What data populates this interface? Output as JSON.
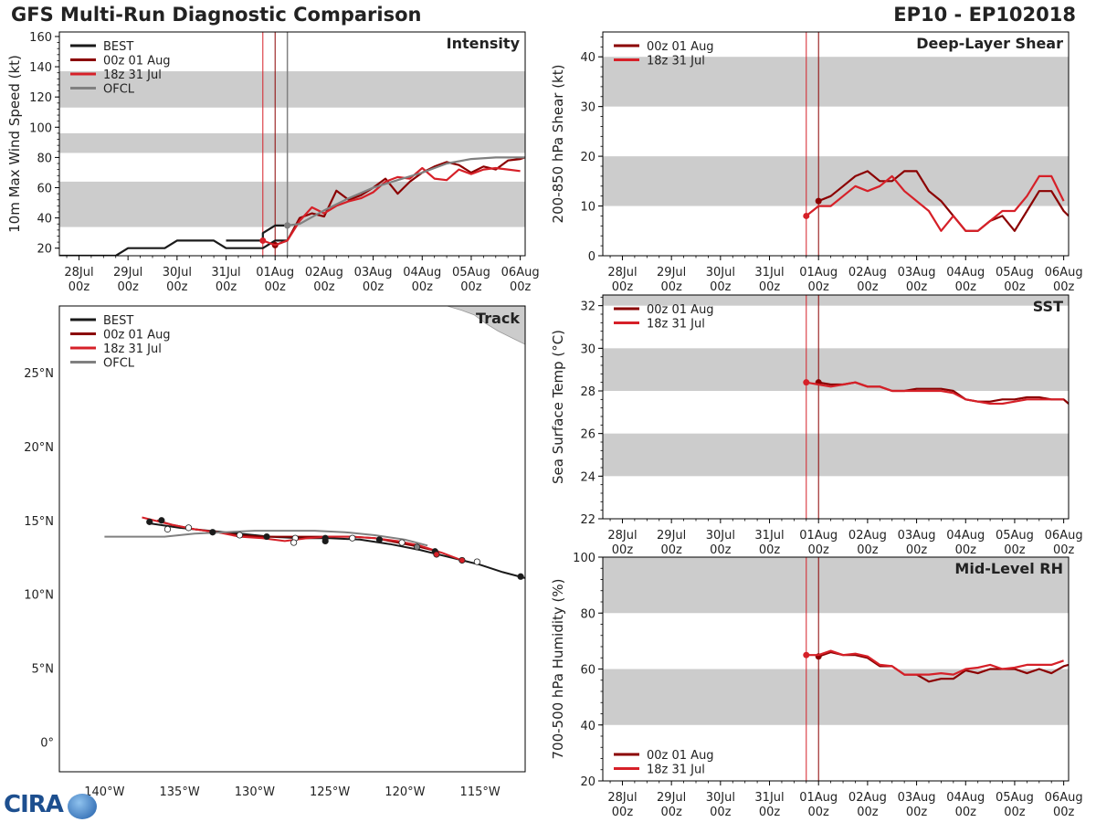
{
  "header": {
    "title": "GFS Multi-Run Diagnostic Comparison",
    "storm_id": "EP10 - EP102018"
  },
  "logo": {
    "text": "CIRA"
  },
  "colors": {
    "best": "#1a1a1a",
    "run_00z": "#8b0000",
    "run_18z": "#d62028",
    "ofcl": "#808080",
    "band": "#cccccc",
    "land": "#cccccc"
  },
  "time_axis": {
    "tick_dates": [
      "28Jul",
      "29Jul",
      "30Jul",
      "31Jul",
      "01Aug",
      "02Aug",
      "03Aug",
      "04Aug",
      "05Aug",
      "06Aug"
    ],
    "tick_hours": [
      "00z",
      "00z",
      "00z",
      "00z",
      "00z",
      "00z",
      "00z",
      "00z",
      "00z",
      "00z"
    ],
    "start_day": -0.4,
    "end_day": 9.1,
    "run_markers": [
      {
        "name": "18z 31 Jul",
        "day": 3.75
      },
      {
        "name": "00z 01 Aug",
        "day": 4.0
      }
    ],
    "ofcl_marker_day": 4.25
  },
  "chart_data": [
    {
      "id": "intensity",
      "type": "line",
      "title": "Intensity",
      "ylabel": "10m Max Wind Speed (kt)",
      "ylim": [
        15,
        163
      ],
      "yticks": [
        20,
        40,
        60,
        80,
        100,
        120,
        140,
        160
      ],
      "bands": [
        [
          34,
          64
        ],
        [
          83,
          96
        ],
        [
          113,
          137
        ]
      ],
      "legend": [
        "BEST",
        "00z 01 Aug",
        "18z 31 Jul",
        "OFCL"
      ],
      "series": [
        {
          "name": "BEST",
          "color": "best",
          "x": [
            -0.4,
            0.75,
            1.0,
            1.75,
            2.0,
            2.75,
            3.0,
            3.75,
            4.0,
            4.25
          ],
          "y": [
            15,
            15,
            20,
            20,
            25,
            25,
            20,
            20,
            25,
            25
          ]
        },
        {
          "name": "BEST_late",
          "color": "best",
          "x": [
            3.0,
            3.25,
            3.5,
            3.75,
            3.75,
            4.0,
            4.25
          ],
          "y": [
            25,
            25,
            25,
            25,
            30,
            35,
            35
          ]
        },
        {
          "name": "00z 01 Aug",
          "color": "run_00z",
          "x": [
            4.0,
            4.25,
            4.5,
            4.75,
            5.0,
            5.25,
            5.5,
            5.75,
            6.0,
            6.25,
            6.5,
            6.75,
            7.0,
            7.25,
            7.5,
            7.75,
            8.0,
            8.25,
            8.5,
            8.75,
            9.0,
            9.1
          ],
          "y": [
            22,
            25,
            40,
            43,
            41,
            58,
            52,
            55,
            60,
            66,
            56,
            64,
            70,
            74,
            77,
            75,
            70,
            74,
            72,
            78,
            79,
            80
          ]
        },
        {
          "name": "18z 31 Jul",
          "color": "run_18z",
          "x": [
            3.75,
            4.0,
            4.25,
            4.5,
            4.75,
            5.0,
            5.25,
            5.5,
            5.75,
            6.0,
            6.25,
            6.5,
            6.75,
            7.0,
            7.25,
            7.5,
            7.75,
            8.0,
            8.25,
            8.5,
            8.75,
            9.0
          ],
          "y": [
            25,
            22,
            25,
            38,
            47,
            43,
            48,
            51,
            53,
            57,
            64,
            67,
            66,
            73,
            66,
            65,
            72,
            69,
            72,
            73,
            72,
            71
          ]
        },
        {
          "name": "OFCL",
          "color": "ofcl",
          "x": [
            4.25,
            4.5,
            5.0,
            5.5,
            6.0,
            6.5,
            7.0,
            7.5,
            8.0,
            8.5,
            9.0,
            9.1
          ],
          "y": [
            35,
            36,
            45,
            53,
            60,
            65,
            70,
            76,
            79,
            80,
            80,
            80
          ]
        }
      ]
    },
    {
      "id": "shear",
      "type": "line",
      "title": "Deep-Layer Shear",
      "ylabel": "200-850 hPa Shear (kt)",
      "ylim": [
        0,
        45
      ],
      "yticks": [
        0,
        10,
        20,
        30,
        40
      ],
      "bands": [
        [
          10,
          20
        ],
        [
          30,
          40
        ]
      ],
      "legend": [
        "00z 01 Aug",
        "18z 31 Jul"
      ],
      "series": [
        {
          "name": "00z 01 Aug",
          "color": "run_00z",
          "x": [
            4.0,
            4.25,
            4.5,
            4.75,
            5.0,
            5.25,
            5.5,
            5.75,
            6.0,
            6.25,
            6.5,
            6.75,
            7.0,
            7.25,
            7.5,
            7.75,
            8.0,
            8.25,
            8.5,
            8.75,
            9.0,
            9.1
          ],
          "y": [
            11,
            12,
            14,
            16,
            17,
            15,
            15,
            17,
            17,
            13,
            11,
            8,
            5,
            5,
            7,
            8,
            5,
            9,
            13,
            13,
            9,
            8
          ]
        },
        {
          "name": "18z 31 Jul",
          "color": "run_18z",
          "x": [
            3.75,
            4.0,
            4.25,
            4.5,
            4.75,
            5.0,
            5.25,
            5.5,
            5.75,
            6.0,
            6.25,
            6.5,
            6.75,
            7.0,
            7.25,
            7.5,
            7.75,
            8.0,
            8.25,
            8.5,
            8.75,
            9.0
          ],
          "y": [
            8,
            10,
            10,
            12,
            14,
            13,
            14,
            16,
            13,
            11,
            9,
            5,
            8,
            5,
            5,
            7,
            9,
            9,
            12,
            16,
            16,
            11
          ]
        }
      ]
    },
    {
      "id": "sst",
      "type": "line",
      "title": "SST",
      "ylabel": "Sea Surface Temp (°C)",
      "ylim": [
        22,
        32.5
      ],
      "yticks": [
        22,
        24,
        26,
        28,
        30,
        32
      ],
      "bands": [
        [
          24,
          26
        ],
        [
          28,
          30
        ],
        [
          32,
          34
        ]
      ],
      "legend": [
        "00z 01 Aug",
        "18z 31 Jul"
      ],
      "series": [
        {
          "name": "00z 01 Aug",
          "color": "run_00z",
          "x": [
            4.0,
            4.25,
            4.5,
            4.75,
            5.0,
            5.25,
            5.5,
            5.75,
            6.0,
            6.25,
            6.5,
            6.75,
            7.0,
            7.25,
            7.5,
            7.75,
            8.0,
            8.25,
            8.5,
            8.75,
            9.0,
            9.1
          ],
          "y": [
            28.4,
            28.3,
            28.3,
            28.4,
            28.2,
            28.2,
            28.0,
            28.0,
            28.1,
            28.1,
            28.1,
            28.0,
            27.6,
            27.5,
            27.5,
            27.6,
            27.6,
            27.7,
            27.7,
            27.6,
            27.6,
            27.4
          ]
        },
        {
          "name": "18z 31 Jul",
          "color": "run_18z",
          "x": [
            3.75,
            4.0,
            4.25,
            4.5,
            4.75,
            5.0,
            5.25,
            5.5,
            5.75,
            6.0,
            6.25,
            6.5,
            6.75,
            7.0,
            7.25,
            7.5,
            7.75,
            8.0,
            8.25,
            8.5,
            8.75,
            9.0
          ],
          "y": [
            28.4,
            28.3,
            28.2,
            28.3,
            28.4,
            28.2,
            28.2,
            28.0,
            28.0,
            28.0,
            28.0,
            28.0,
            27.9,
            27.6,
            27.5,
            27.4,
            27.4,
            27.5,
            27.6,
            27.6,
            27.6,
            27.6
          ]
        }
      ]
    },
    {
      "id": "rh",
      "type": "line",
      "title": "Mid-Level RH",
      "ylabel": "700-500 hPa Humidity (%)",
      "ylim": [
        20,
        100
      ],
      "yticks": [
        20,
        40,
        60,
        80,
        100
      ],
      "bands": [
        [
          40,
          60
        ],
        [
          80,
          100
        ]
      ],
      "legend": [
        "00z 01 Aug",
        "18z 31 Jul"
      ],
      "series": [
        {
          "name": "00z 01 Aug",
          "color": "run_00z",
          "x": [
            4.0,
            4.25,
            4.5,
            4.75,
            5.0,
            5.25,
            5.5,
            5.75,
            6.0,
            6.25,
            6.5,
            6.75,
            7.0,
            7.25,
            7.5,
            7.75,
            8.0,
            8.25,
            8.5,
            8.75,
            9.0,
            9.1
          ],
          "y": [
            64.5,
            66,
            65,
            65,
            64,
            61,
            61,
            58,
            58,
            55.5,
            56.5,
            56.5,
            59.5,
            58.5,
            60,
            60,
            60,
            58.5,
            60,
            58.5,
            61,
            61.5
          ]
        },
        {
          "name": "18z 31 Jul",
          "color": "run_18z",
          "x": [
            3.75,
            4.0,
            4.25,
            4.5,
            4.75,
            5.0,
            5.25,
            5.5,
            5.75,
            6.0,
            6.25,
            6.5,
            6.75,
            7.0,
            7.25,
            7.5,
            7.75,
            8.0,
            8.25,
            8.5,
            8.75,
            9.0
          ],
          "y": [
            65,
            65,
            66.5,
            65,
            65.5,
            64.5,
            61.5,
            61,
            58,
            58,
            58,
            58.5,
            58,
            60,
            60.5,
            61.5,
            60,
            60.5,
            61.5,
            61.5,
            61.5,
            63
          ]
        }
      ]
    },
    {
      "id": "track",
      "type": "line",
      "title": "Track",
      "xlim": [
        -143,
        -112
      ],
      "ylim": [
        -2,
        29.5
      ],
      "xticks": [
        -140,
        -135,
        -130,
        -125,
        -120,
        -115
      ],
      "xtick_labels": [
        "140°W",
        "135°W",
        "130°W",
        "125°W",
        "120°W",
        "115°W"
      ],
      "yticks": [
        0,
        5,
        10,
        15,
        20,
        25
      ],
      "ytick_labels": [
        "0°",
        "5°N",
        "10°N",
        "15°N",
        "20°N",
        "25°N"
      ],
      "legend": [
        "BEST",
        "00z 01 Aug",
        "18z 31 Jul",
        "OFCL"
      ],
      "series": [
        {
          "name": "BEST",
          "color": "best",
          "x": [
            -112,
            -113.5,
            -115,
            -117,
            -119,
            -121,
            -123,
            -125,
            -127,
            -129,
            -131,
            -133,
            -135,
            -137
          ],
          "y": [
            11.1,
            11.5,
            12.0,
            12.5,
            13.0,
            13.4,
            13.7,
            13.8,
            13.8,
            13.9,
            14.1,
            14.3,
            14.5,
            14.8
          ]
        },
        {
          "name": "00z 01 Aug",
          "color": "run_00z",
          "x": [
            -117.8,
            -119,
            -120.5,
            -122,
            -123.5,
            -125,
            -126.5,
            -128,
            -129.5,
            -131,
            -132.5,
            -134,
            -135.5,
            -136.5
          ],
          "y": [
            12.9,
            13.2,
            13.5,
            13.8,
            13.9,
            13.9,
            13.9,
            13.9,
            13.9,
            14.0,
            14.2,
            14.4,
            14.7,
            15.0
          ]
        },
        {
          "name": "18z 31 Jul",
          "color": "run_18z",
          "x": [
            -116.2,
            -117.5,
            -119,
            -120.5,
            -122,
            -123.5,
            -125,
            -126.5,
            -128,
            -129.5,
            -131,
            -132.5,
            -134,
            -135.5,
            -137.5
          ],
          "y": [
            12.3,
            12.8,
            13.3,
            13.6,
            13.8,
            13.9,
            13.9,
            13.8,
            13.6,
            13.8,
            13.9,
            14.2,
            14.4,
            14.7,
            15.2
          ]
        },
        {
          "name": "OFCL",
          "color": "ofcl",
          "x": [
            -118.5,
            -120,
            -122,
            -124,
            -126,
            -128,
            -130,
            -132,
            -134,
            -136,
            -140
          ],
          "y": [
            13.3,
            13.7,
            14.0,
            14.2,
            14.3,
            14.3,
            14.3,
            14.2,
            14.1,
            13.9,
            13.9
          ]
        }
      ],
      "markers": [
        {
          "x": -112.3,
          "y": 11.2,
          "fill": "best"
        },
        {
          "x": -115.2,
          "y": 12.2,
          "fill": "white"
        },
        {
          "x": -118,
          "y": 12.9,
          "fill": "best"
        },
        {
          "x": -119.2,
          "y": 13.2,
          "fill": "ofcl"
        },
        {
          "x": -120.2,
          "y": 13.5,
          "fill": "white"
        },
        {
          "x": -121.7,
          "y": 13.7,
          "fill": "best"
        },
        {
          "x": -123.5,
          "y": 13.8,
          "fill": "white"
        },
        {
          "x": -125.3,
          "y": 13.8,
          "fill": "best"
        },
        {
          "x": -127.3,
          "y": 13.8,
          "fill": "white"
        },
        {
          "x": -129.2,
          "y": 13.9,
          "fill": "best"
        },
        {
          "x": -131,
          "y": 14.0,
          "fill": "white"
        },
        {
          "x": -132.8,
          "y": 14.2,
          "fill": "best"
        },
        {
          "x": -134.4,
          "y": 14.5,
          "fill": "white"
        },
        {
          "x": -135.8,
          "y": 14.4,
          "fill": "white"
        },
        {
          "x": -137,
          "y": 14.9,
          "fill": "best"
        },
        {
          "x": -136.2,
          "y": 15.0,
          "fill": "best"
        },
        {
          "x": -127.4,
          "y": 13.5,
          "fill": "white"
        },
        {
          "x": -125.3,
          "y": 13.6,
          "fill": "best"
        },
        {
          "x": -117.9,
          "y": 12.7,
          "fill": "run_18z"
        },
        {
          "x": -116.2,
          "y": 12.3,
          "fill": "run_18z"
        }
      ],
      "land": [
        [
          -117.2,
          29.5
        ],
        [
          -112,
          29.5
        ],
        [
          -112,
          26.9
        ],
        [
          -112.8,
          27.3
        ],
        [
          -113.8,
          27.8
        ],
        [
          -114.6,
          28.3
        ],
        [
          -115.4,
          28.9
        ],
        [
          -116.2,
          29.2
        ],
        [
          -117.2,
          29.5
        ]
      ]
    }
  ]
}
